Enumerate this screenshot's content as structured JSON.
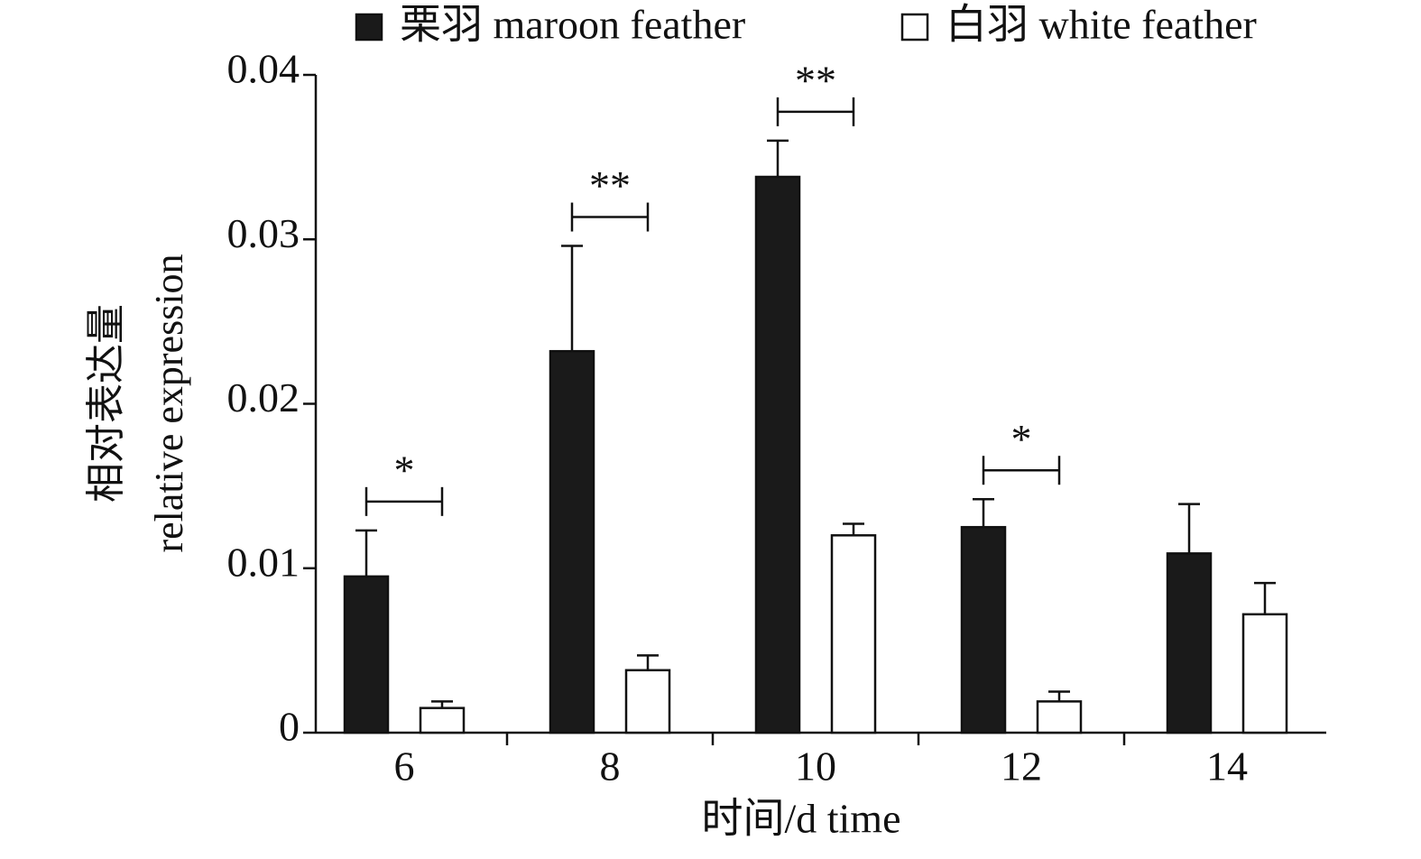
{
  "chart_data": {
    "type": "bar",
    "categories": [
      "6",
      "8",
      "10",
      "12",
      "14"
    ],
    "series": [
      {
        "name": "栗羽 maroon feather",
        "color": "#1a1a1a",
        "values": [
          0.0095,
          0.0232,
          0.0338,
          0.0125,
          0.0109
        ],
        "errors": [
          0.0028,
          0.0064,
          0.0022,
          0.0017,
          0.003
        ]
      },
      {
        "name": "白羽 white feather",
        "color": "#ffffff",
        "values": [
          0.0015,
          0.0038,
          0.012,
          0.0019,
          0.0072
        ],
        "errors": [
          0.0004,
          0.0009,
          0.0007,
          0.0006,
          0.0019
        ]
      }
    ],
    "significance": [
      {
        "category": 0,
        "label": "*"
      },
      {
        "category": 1,
        "label": "**"
      },
      {
        "category": 2,
        "label": "**"
      },
      {
        "category": 3,
        "label": "*"
      }
    ],
    "ylim": [
      0,
      0.04
    ],
    "yticks": [
      0,
      0.01,
      0.02,
      0.03,
      0.04
    ],
    "y_label": [
      "相对表达量",
      "relative expression"
    ],
    "x_label": "时间/d time",
    "legend": "top"
  }
}
